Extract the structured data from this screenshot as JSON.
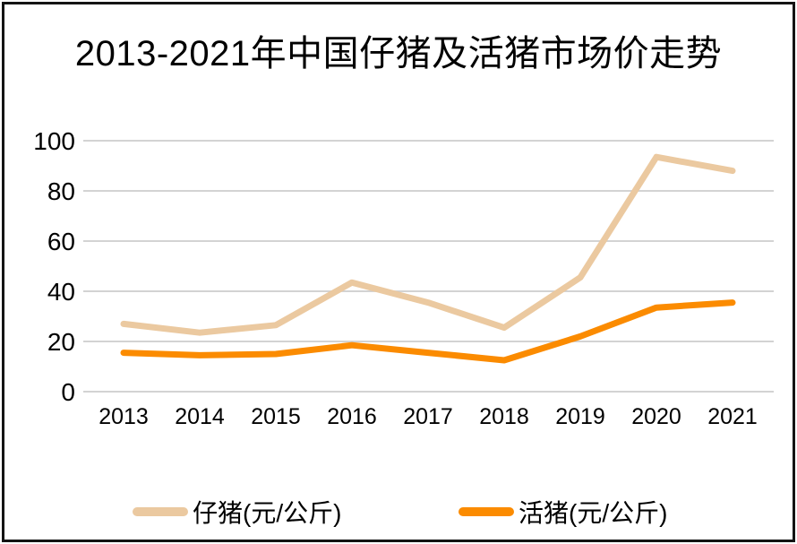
{
  "window": {
    "background": "#ffffff",
    "border_color": "#141414"
  },
  "chart_data": {
    "type": "line",
    "title": "2013-2021年中国仔猪及活猪市场价走势",
    "categories": [
      "2013",
      "2014",
      "2015",
      "2016",
      "2017",
      "2018",
      "2019",
      "2020",
      "2021"
    ],
    "series": [
      {
        "name": "仔猪(元/公斤)",
        "color": "#EBC9A0",
        "values": [
          27,
          23.5,
          26.5,
          43.5,
          35.5,
          25.5,
          45.5,
          93.5,
          88
        ]
      },
      {
        "name": "活猪(元/公斤)",
        "color": "#FB8B00",
        "values": [
          15.5,
          14.5,
          15,
          18.5,
          15.5,
          12.5,
          22,
          33.5,
          35.5
        ]
      }
    ],
    "xlabel": "",
    "ylabel": "",
    "ylim": [
      0,
      100
    ],
    "yticks": [
      0,
      20,
      40,
      60,
      80,
      100
    ],
    "grid": true,
    "gridline_color": "#CDCDCD",
    "text_color": "#000000",
    "legend_position": "bottom"
  }
}
